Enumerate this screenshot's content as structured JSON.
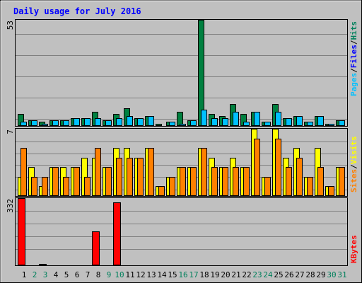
{
  "chart_data": {
    "type": "bar",
    "title": "Daily usage for July 2016",
    "days": [
      "1",
      "2",
      "3",
      "4",
      "5",
      "6",
      "7",
      "8",
      "9",
      "10",
      "11",
      "12",
      "13",
      "14",
      "15",
      "16",
      "17",
      "18",
      "19",
      "20",
      "21",
      "22",
      "23",
      "24",
      "25",
      "26",
      "27",
      "28",
      "29",
      "30",
      "31"
    ],
    "weekend_days": [
      "2",
      "3",
      "9",
      "10",
      "16",
      "17",
      "23",
      "24",
      "30",
      "31"
    ],
    "panels": [
      {
        "id": "hits-files-pages",
        "scale_max_label": "53",
        "scale_max": 53,
        "legend": [
          "Pages",
          "Files",
          "Hits"
        ],
        "series": [
          {
            "name": "Hits",
            "color": "#008040",
            "values": [
              6,
              3,
              2,
              3,
              3,
              4,
              4,
              7,
              3,
              6,
              9,
              4,
              5,
              1,
              2,
              7,
              3,
              53,
              6,
              5,
              11,
              6,
              7,
              2,
              11,
              4,
              5,
              2,
              5,
              1,
              3
            ]
          },
          {
            "name": "Files",
            "color": "#00c0ff",
            "values": [
              2,
              3,
              1,
              3,
              3,
              4,
              4,
              4,
              3,
              4,
              5,
              4,
              5,
              0,
              2,
              1,
              3,
              8,
              4,
              4,
              7,
              2,
              7,
              2,
              7,
              4,
              5,
              2,
              5,
              1,
              3
            ]
          },
          {
            "name": "Pages",
            "color": "#0000ff",
            "values": [
              0,
              0,
              0,
              0,
              0,
              0,
              0,
              0,
              0,
              0,
              0,
              0,
              0,
              0,
              0,
              0,
              0,
              0,
              0,
              0,
              0,
              0,
              0,
              0,
              0,
              0,
              0,
              0,
              0,
              0,
              0
            ]
          }
        ]
      },
      {
        "id": "visits-sites",
        "scale_max_label": "7",
        "scale_max": 7,
        "legend": [
          "Sites",
          "Visits"
        ],
        "series": [
          {
            "name": "Visits",
            "color": "#ffff00",
            "values": [
              2,
              3,
              1,
              3,
              3,
              3,
              4,
              4,
              3,
              5,
              5,
              4,
              5,
              1,
              2,
              3,
              3,
              5,
              4,
              3,
              4,
              3,
              7,
              2,
              7,
              4,
              5,
              2,
              5,
              1,
              3
            ]
          },
          {
            "name": "Sites",
            "color": "#ff8000",
            "values": [
              5,
              2,
              2,
              3,
              2,
              3,
              2,
              5,
              3,
              4,
              4,
              4,
              5,
              1,
              2,
              3,
              3,
              5,
              3,
              3,
              3,
              3,
              6,
              2,
              6,
              3,
              4,
              2,
              3,
              1,
              3
            ]
          }
        ]
      },
      {
        "id": "kbytes",
        "scale_max_label": "332",
        "scale_max": 332,
        "legend": [
          "KBytes"
        ],
        "series": [
          {
            "name": "KBytes",
            "color": "#ff0000",
            "values": [
              332,
              1,
              6,
              1,
              1,
              1,
              1,
              167,
              1,
              310,
              1,
              1,
              1,
              1,
              1,
              1,
              1,
              1,
              1,
              1,
              1,
              1,
              1,
              1,
              1,
              1,
              1,
              1,
              1,
              1,
              1
            ]
          }
        ]
      }
    ],
    "legend_separator": "/",
    "colors": {
      "background": "#c0c0c0",
      "title": "#0000ff",
      "weekday_label": "#000000",
      "weekend_label": "#00805c",
      "gridline": "#808080",
      "bar_outline": "#000000",
      "legend_separator": "#000000",
      "pages_label": "#00c0ff",
      "files_label": "#0000ff",
      "hits_label": "#00805c",
      "sites_label": "#ff8000",
      "visits_label": "#ffff00",
      "kbytes_label": "#ff0000"
    }
  }
}
